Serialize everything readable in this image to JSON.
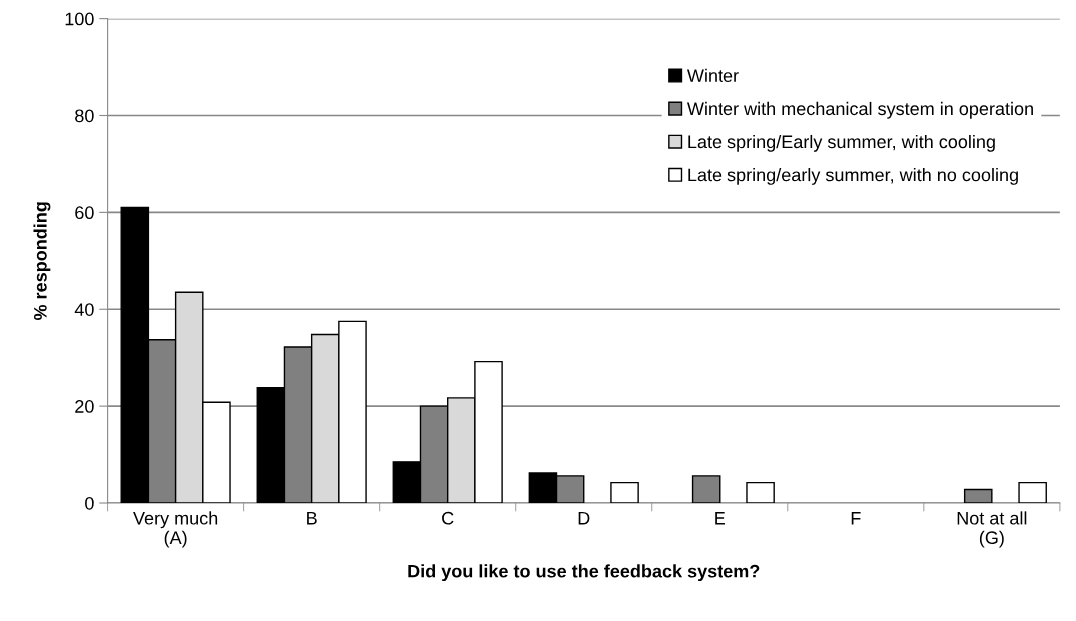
{
  "chart_data": {
    "type": "bar",
    "xlabel": "Did you like to use the feedback system?",
    "ylabel": "% responding",
    "categories": [
      "Very much\n(A)",
      "B",
      "C",
      "D",
      "E",
      "F",
      "Not at all\n(G)"
    ],
    "series": [
      {
        "name": "Winter",
        "color": "#000000",
        "values": [
          61,
          23.8,
          8.5,
          6.2,
          0,
          0,
          0
        ]
      },
      {
        "name": "Winter with mechanical system in operation",
        "color": "#808080",
        "values": [
          33.7,
          32.2,
          20,
          5.6,
          5.6,
          0,
          2.8
        ]
      },
      {
        "name": "Late spring/Early summer, with cooling",
        "color": "#d9d9d9",
        "values": [
          43.5,
          34.8,
          21.7,
          0,
          0,
          0,
          0
        ]
      },
      {
        "name": "Late spring/early summer, with no cooling",
        "color": "#ffffff",
        "values": [
          20.8,
          37.5,
          29.2,
          4.2,
          4.2,
          0,
          4.2
        ]
      }
    ],
    "ylim": [
      0,
      100
    ],
    "yticks": [
      0,
      20,
      40,
      60,
      80,
      100
    ],
    "grid": "y",
    "legend": "top right"
  }
}
